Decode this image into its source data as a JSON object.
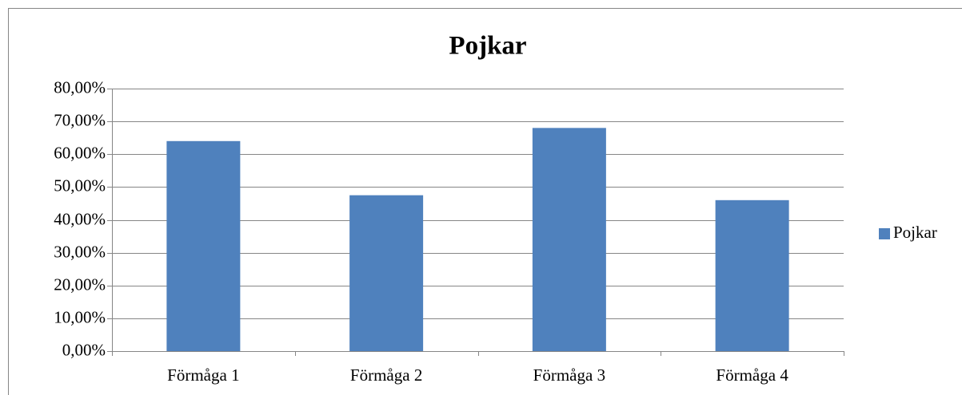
{
  "chart_data": {
    "type": "bar",
    "title": "Pojkar",
    "categories": [
      "Förmåga 1",
      "Förmåga 2",
      "Förmåga 3",
      "Förmåga 4"
    ],
    "series": [
      {
        "name": "Pojkar",
        "color": "#4f81bd",
        "values": [
          64,
          47.5,
          68,
          46
        ]
      }
    ],
    "ylim": [
      0,
      80
    ],
    "yticks": [
      {
        "value": 0,
        "label": "0,00%"
      },
      {
        "value": 10,
        "label": "10,00%"
      },
      {
        "value": 20,
        "label": "20,00%"
      },
      {
        "value": 30,
        "label": "30,00%"
      },
      {
        "value": 40,
        "label": "40,00%"
      },
      {
        "value": 50,
        "label": "50,00%"
      },
      {
        "value": 60,
        "label": "60,00%"
      },
      {
        "value": 70,
        "label": "70,00%"
      },
      {
        "value": 80,
        "label": "80,00%"
      }
    ],
    "grid": true,
    "legend": "right"
  }
}
